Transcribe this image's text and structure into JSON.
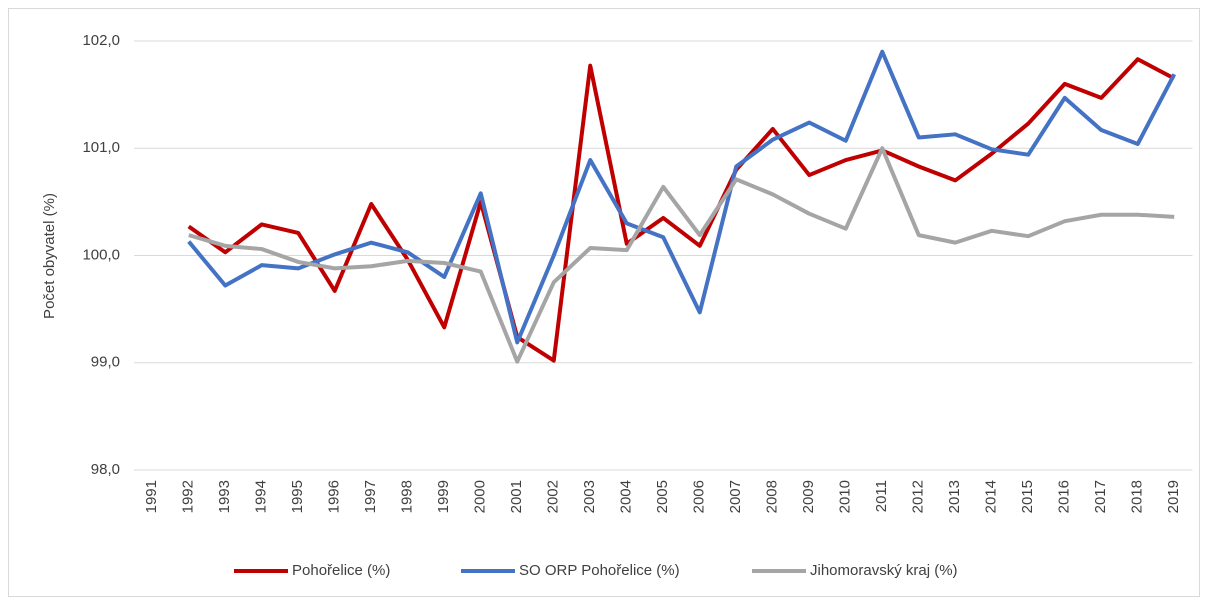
{
  "chart_data": {
    "type": "line",
    "y_label": "Počet obyvatel (%)",
    "categories": [
      "1991",
      "1992",
      "1993",
      "1994",
      "1995",
      "1996",
      "1997",
      "1998",
      "1999",
      "2000",
      "2001",
      "2002",
      "2003",
      "2004",
      "2005",
      "2006",
      "2007",
      "2008",
      "2009",
      "2010",
      "2011",
      "2012",
      "2013",
      "2014",
      "2015",
      "2016",
      "2017",
      "2018",
      "2019"
    ],
    "series": [
      {
        "name": "Pohořelice (%)",
        "color": "#c00000",
        "values": [
          null,
          100.27,
          100.03,
          100.29,
          100.21,
          99.67,
          100.48,
          99.96,
          99.33,
          100.5,
          99.24,
          99.02,
          101.77,
          100.11,
          100.35,
          100.09,
          100.8,
          101.18,
          100.75,
          100.89,
          100.98,
          100.83,
          100.7,
          100.95,
          101.23,
          101.6,
          101.47,
          101.83,
          101.65
        ]
      },
      {
        "name": "SO ORP Pohořelice (%)",
        "color": "#4472c4",
        "values": [
          null,
          100.13,
          99.72,
          99.91,
          99.88,
          100.01,
          100.12,
          100.03,
          99.8,
          100.58,
          99.19,
          100.0,
          100.89,
          100.3,
          100.17,
          99.47,
          100.83,
          101.08,
          101.24,
          101.07,
          101.9,
          101.1,
          101.13,
          100.99,
          100.94,
          101.47,
          101.17,
          101.04,
          101.69
        ]
      },
      {
        "name": "Jihomoravský kraj (%)",
        "color": "#a5a5a5",
        "values": [
          null,
          100.19,
          100.09,
          100.06,
          99.94,
          99.88,
          99.9,
          99.95,
          99.93,
          99.85,
          99.01,
          99.75,
          100.07,
          100.05,
          100.64,
          100.19,
          100.71,
          100.57,
          100.39,
          100.25,
          101.0,
          100.19,
          100.12,
          100.23,
          100.18,
          100.32,
          100.38,
          100.38,
          100.36
        ]
      }
    ],
    "ylim": [
      98,
      102
    ],
    "yticks": [
      {
        "value": 98,
        "label": "98,0"
      },
      {
        "value": 99,
        "label": "99,0"
      },
      {
        "value": 100,
        "label": "100,0"
      },
      {
        "value": 101,
        "label": "101,0"
      },
      {
        "value": 102,
        "label": "102,0"
      }
    ],
    "grid": true,
    "legend": "bottom"
  }
}
